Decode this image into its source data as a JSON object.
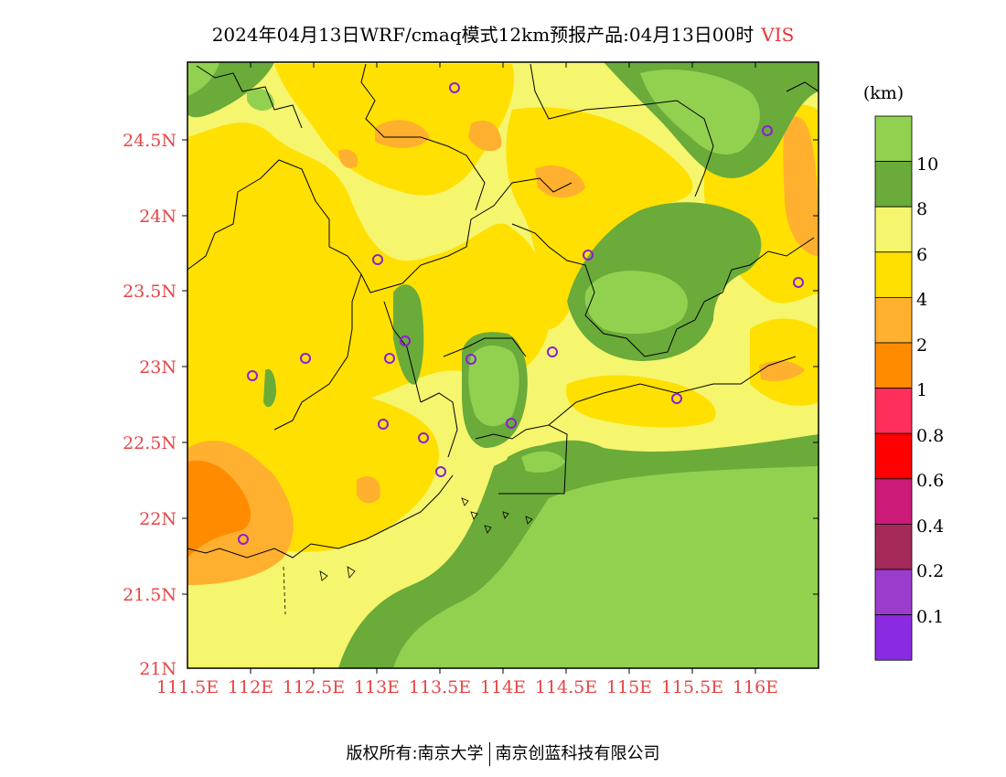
{
  "title": {
    "main": "2024年04月13日WRF/cmaq模式12km预报产品:04月13日00时",
    "variable": "VIS"
  },
  "map": {
    "lon_ticks": [
      "111.5E",
      "112E",
      "112.5E",
      "113E",
      "113.5E",
      "114E",
      "114.5E",
      "115E",
      "115.5E",
      "116E"
    ],
    "lat_ticks": [
      "24.5N",
      "24N",
      "23.5N",
      "23N",
      "22.5N",
      "22N",
      "21.5N",
      "21N"
    ]
  },
  "legend": {
    "unit": "(km)",
    "labels": [
      "10",
      "8",
      "6",
      "4",
      "2",
      "1",
      "0.8",
      "0.6",
      "0.4",
      "0.2",
      "0.1"
    ],
    "colors": [
      "#92d050",
      "#6aab3a",
      "#f5f56e",
      "#ffe000",
      "#ffb02e",
      "#ff8c00",
      "#ff2e5a",
      "#ff0000",
      "#cc1a78",
      "#a52a5a",
      "#9b3ccf",
      "#8a2be2"
    ]
  },
  "footer": {
    "left": "版权所有:南京大学",
    "right": "南京创蓝科技有限公司"
  }
}
